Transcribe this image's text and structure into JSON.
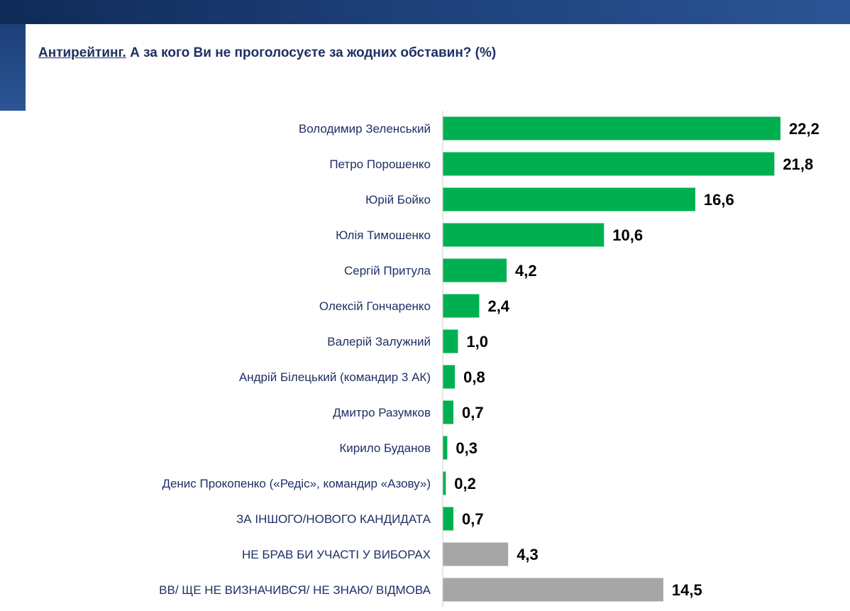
{
  "title": {
    "key": "Антирейтинг.",
    "rest": "А за кого Ви не проголосуєте за жодних обставин? (%)"
  },
  "colors": {
    "candidate": "#00b050",
    "other": "#a6a6a6",
    "header": "#1d3f78",
    "label_text": "#1f3064"
  },
  "chart_data": {
    "type": "bar",
    "orientation": "horizontal",
    "title": "Антирейтинг. А за кого Ви не проголосуєте за жодних обставин? (%)",
    "xlabel": "",
    "ylabel": "",
    "xlim": [
      0,
      22.2
    ],
    "grid": false,
    "categories": [
      "Володимир Зеленський",
      "Петро Порошенко",
      "Юрій Бойко",
      "Юлія Тимошенко",
      "Сергій Притула",
      "Олексій Гончаренко",
      "Валерій Залужний",
      "Андрій Білецький (командир 3 АК)",
      "Дмитро Разумков",
      "Кирило Буданов",
      "Денис Прокопенко («Редіс», командир «Азову»)",
      "ЗА ІНШОГО/НОВОГО КАНДИДАТА",
      "НЕ БРАВ БИ УЧАСТІ У ВИБОРАХ",
      "ВВ/ ЩЕ НЕ ВИЗНАЧИВСЯ/ НЕ ЗНАЮ/ ВІДМОВА"
    ],
    "values": [
      22.2,
      21.8,
      16.6,
      10.6,
      4.2,
      2.4,
      1.0,
      0.8,
      0.7,
      0.3,
      0.2,
      0.7,
      4.3,
      14.5
    ],
    "value_labels": [
      "22,2",
      "21,8",
      "16,6",
      "10,6",
      "4,2",
      "2,4",
      "1,0",
      "0,8",
      "0,7",
      "0,3",
      "0,2",
      "0,7",
      "4,3",
      "14,5"
    ],
    "groups": [
      "candidate",
      "candidate",
      "candidate",
      "candidate",
      "candidate",
      "candidate",
      "candidate",
      "candidate",
      "candidate",
      "candidate",
      "candidate",
      "candidate",
      "other",
      "other"
    ]
  }
}
